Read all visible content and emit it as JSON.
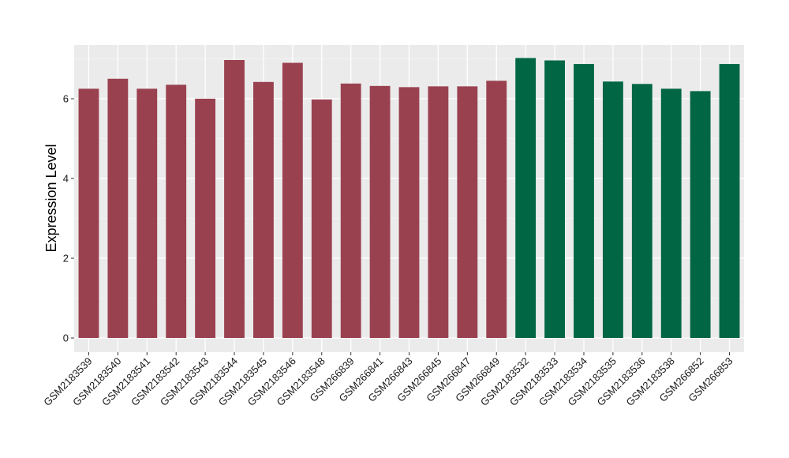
{
  "chart_data": {
    "type": "bar",
    "title": "",
    "xlabel": "",
    "ylabel": "Expression Level",
    "ylim": [
      0,
      7.4
    ],
    "yticks": [
      0,
      2,
      4,
      6
    ],
    "grid": true,
    "panel_background": "#EBEBEB",
    "colors": {
      "group1": "#9A4150",
      "group2": "#006644"
    },
    "categories": [
      "GSM2183539",
      "GSM2183540",
      "GSM2183541",
      "GSM2183542",
      "GSM2183543",
      "GSM2183544",
      "GSM2183545",
      "GSM2183546",
      "GSM2183548",
      "GSM266839",
      "GSM266841",
      "GSM266843",
      "GSM266845",
      "GSM266847",
      "GSM266849",
      "GSM2183532",
      "GSM2183533",
      "GSM2183534",
      "GSM2183535",
      "GSM2183536",
      "GSM2183538",
      "GSM266852",
      "GSM266853"
    ],
    "values": [
      6.25,
      6.5,
      6.25,
      6.35,
      6.0,
      6.97,
      6.42,
      6.9,
      5.98,
      6.38,
      6.32,
      6.29,
      6.31,
      6.31,
      6.45,
      7.02,
      6.96,
      6.87,
      6.43,
      6.37,
      6.25,
      6.19,
      6.87
    ],
    "groups": [
      "group1",
      "group1",
      "group1",
      "group1",
      "group1",
      "group1",
      "group1",
      "group1",
      "group1",
      "group1",
      "group1",
      "group1",
      "group1",
      "group1",
      "group1",
      "group2",
      "group2",
      "group2",
      "group2",
      "group2",
      "group2",
      "group2",
      "group2"
    ]
  }
}
